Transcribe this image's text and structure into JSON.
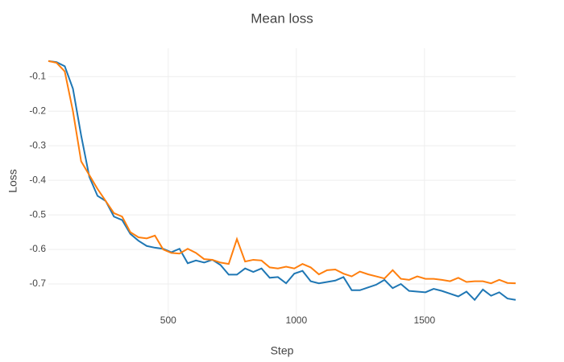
{
  "chart_data": {
    "type": "line",
    "title": "Mean loss",
    "x_label": "Step",
    "y_label": "Loss",
    "x": [
      32,
      64,
      96,
      128,
      160,
      192,
      224,
      256,
      288,
      320,
      352,
      384,
      416,
      448,
      480,
      512,
      544,
      576,
      608,
      640,
      672,
      704,
      736,
      768,
      800,
      832,
      864,
      896,
      928,
      960,
      992,
      1024,
      1056,
      1088,
      1120,
      1152,
      1184,
      1216,
      1248,
      1280,
      1312,
      1344,
      1376,
      1408,
      1440,
      1472,
      1504,
      1536,
      1568,
      1600,
      1632,
      1664,
      1696,
      1728,
      1760,
      1792,
      1824,
      1856
    ],
    "series": [
      {
        "color": "#1f77b4",
        "values": [
          -0.055,
          -0.058,
          -0.07,
          -0.135,
          -0.27,
          -0.39,
          -0.445,
          -0.46,
          -0.505,
          -0.515,
          -0.555,
          -0.575,
          -0.59,
          -0.595,
          -0.598,
          -0.608,
          -0.598,
          -0.64,
          -0.632,
          -0.638,
          -0.63,
          -0.645,
          -0.673,
          -0.673,
          -0.655,
          -0.665,
          -0.655,
          -0.682,
          -0.68,
          -0.698,
          -0.67,
          -0.662,
          -0.692,
          -0.698,
          -0.694,
          -0.69,
          -0.68,
          -0.718,
          -0.718,
          -0.71,
          -0.702,
          -0.688,
          -0.712,
          -0.7,
          -0.72,
          -0.722,
          -0.724,
          -0.714,
          -0.72,
          -0.728,
          -0.736,
          -0.722,
          -0.746,
          -0.716,
          -0.734,
          -0.724,
          -0.742,
          -0.746
        ]
      },
      {
        "color": "#ff7f0e",
        "values": [
          -0.055,
          -0.06,
          -0.085,
          -0.2,
          -0.345,
          -0.385,
          -0.425,
          -0.46,
          -0.495,
          -0.505,
          -0.55,
          -0.565,
          -0.568,
          -0.56,
          -0.6,
          -0.61,
          -0.612,
          -0.598,
          -0.61,
          -0.628,
          -0.63,
          -0.638,
          -0.642,
          -0.57,
          -0.635,
          -0.63,
          -0.632,
          -0.652,
          -0.655,
          -0.65,
          -0.655,
          -0.642,
          -0.652,
          -0.672,
          -0.66,
          -0.658,
          -0.67,
          -0.678,
          -0.664,
          -0.672,
          -0.678,
          -0.684,
          -0.66,
          -0.685,
          -0.688,
          -0.678,
          -0.685,
          -0.685,
          -0.688,
          -0.692,
          -0.682,
          -0.694,
          -0.692,
          -0.692,
          -0.698,
          -0.688,
          -0.697,
          -0.698
        ]
      }
    ],
    "xlim": [
      32,
      1856
    ],
    "ylim": [
      -0.8,
      -0.018
    ],
    "xticks": [
      500,
      1000,
      1500
    ],
    "yticks": [
      -0.1,
      -0.2,
      -0.3,
      -0.4,
      -0.5,
      -0.6,
      -0.7
    ],
    "grid": true
  }
}
